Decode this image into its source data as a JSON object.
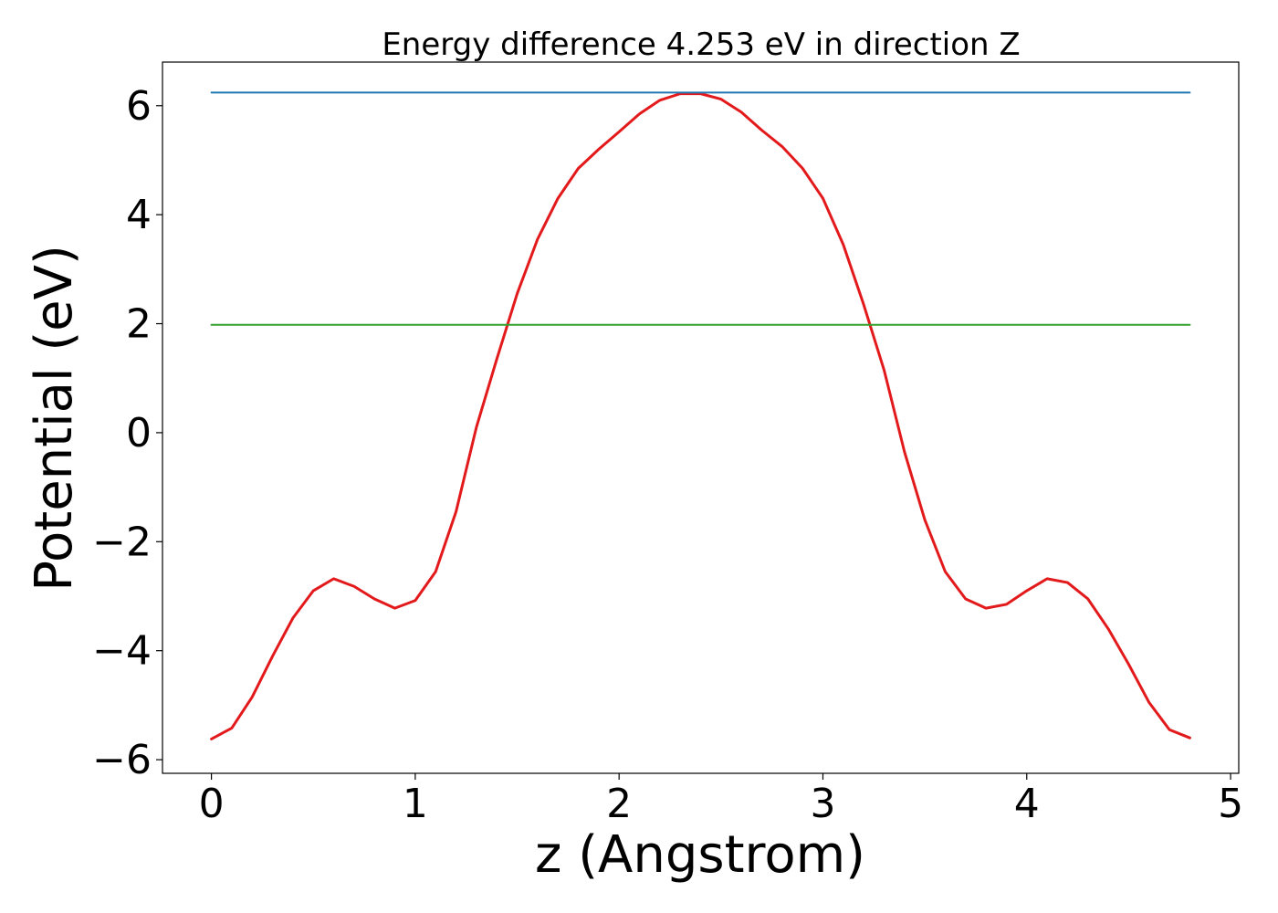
{
  "chart_data": {
    "type": "line",
    "title": "Energy difference 4.253 eV in direction Z",
    "xlabel": "z (Angstrom)",
    "ylabel": "Potential (eV)",
    "xlim": [
      -0.24,
      5.04
    ],
    "ylim": [
      -6.25,
      6.8
    ],
    "xticks": [
      0,
      1,
      2,
      3,
      4,
      5
    ],
    "xtick_labels": [
      "0",
      "1",
      "2",
      "3",
      "4",
      "5"
    ],
    "yticks": [
      -6,
      -4,
      -2,
      0,
      2,
      4,
      6
    ],
    "ytick_labels": [
      "−6",
      "−4",
      "−2",
      "0",
      "2",
      "4",
      "6"
    ],
    "grid": false,
    "colors": {
      "potential": "#e31a1c",
      "upper_level": "#1f78b4",
      "lower_level": "#33a02c"
    },
    "series": [
      {
        "color": "#e31a1c",
        "x": [
          0.0,
          0.1,
          0.2,
          0.3,
          0.4,
          0.5,
          0.6,
          0.7,
          0.8,
          0.9,
          1.0,
          1.1,
          1.2,
          1.3,
          1.4,
          1.5,
          1.6,
          1.7,
          1.8,
          1.9,
          2.0,
          2.1,
          2.2,
          2.3,
          2.4,
          2.5,
          2.6,
          2.7,
          2.8,
          2.9,
          3.0,
          3.1,
          3.2,
          3.3,
          3.4,
          3.5,
          3.6,
          3.7,
          3.8,
          3.9,
          4.0,
          4.1,
          4.2,
          4.3,
          4.4,
          4.5,
          4.6,
          4.7,
          4.8
        ],
        "y": [
          -5.62,
          -5.42,
          -4.85,
          -4.1,
          -3.4,
          -2.9,
          -2.68,
          -2.82,
          -3.05,
          -3.22,
          -3.08,
          -2.55,
          -1.45,
          0.1,
          1.35,
          2.55,
          3.55,
          4.3,
          4.85,
          5.2,
          5.52,
          5.85,
          6.1,
          6.22,
          6.22,
          6.12,
          5.88,
          5.55,
          5.25,
          4.85,
          4.3,
          3.45,
          2.35,
          1.15,
          -0.35,
          -1.6,
          -2.55,
          -3.05,
          -3.22,
          -3.15,
          -2.9,
          -2.68,
          -2.75,
          -3.05,
          -3.6,
          -4.25,
          -4.95,
          -5.45,
          -5.6
        ]
      },
      {
        "color": "#1f78b4",
        "x": [
          0.0,
          4.8
        ],
        "y": [
          6.24,
          6.24
        ]
      },
      {
        "color": "#33a02c",
        "x": [
          0.0,
          4.8
        ],
        "y": [
          1.98,
          1.98
        ]
      }
    ]
  }
}
